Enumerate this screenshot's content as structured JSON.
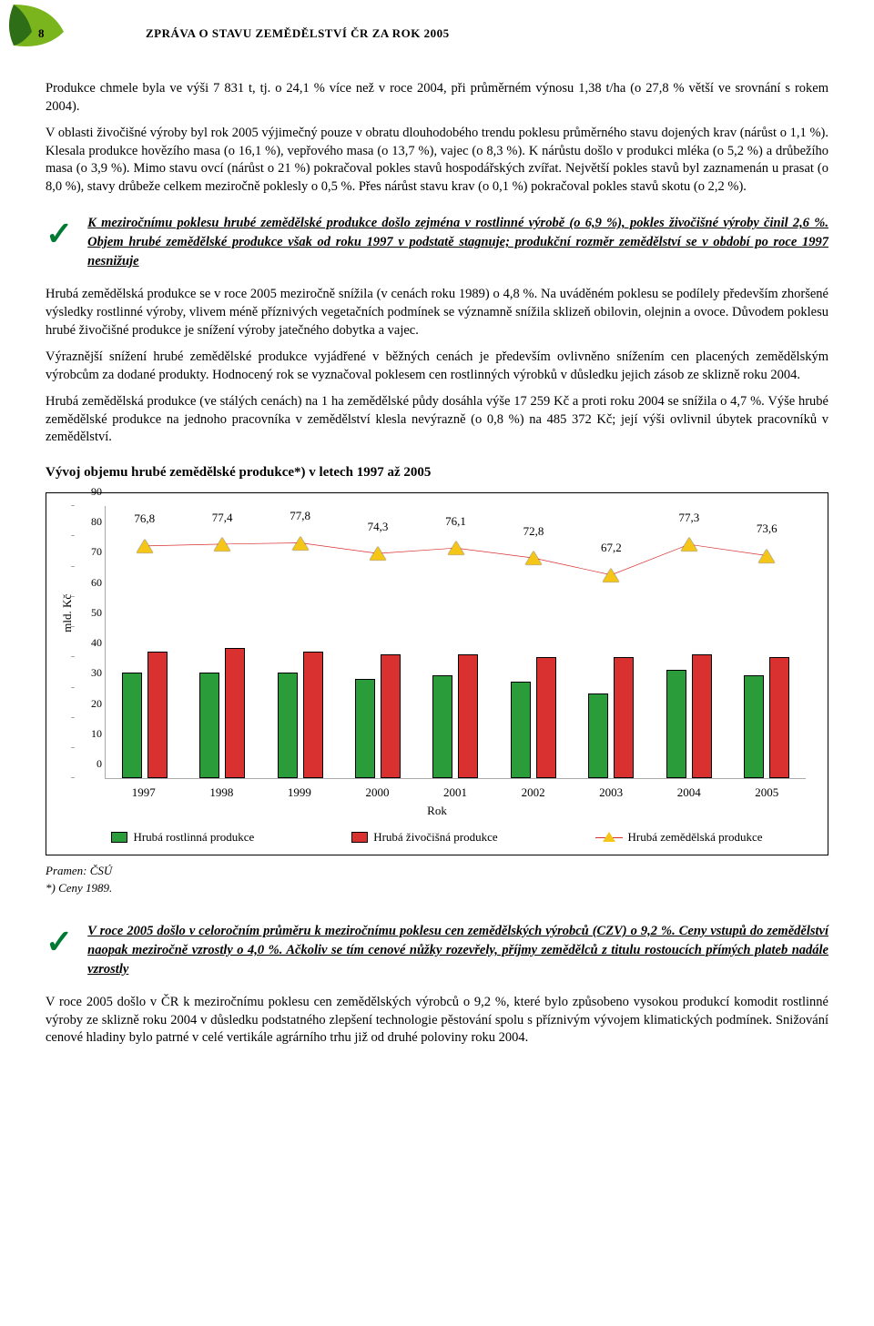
{
  "header": {
    "page_number": "8",
    "title": "ZPRÁVA O STAVU ZEMĚDĚLSTVÍ ČR ZA ROK 2005",
    "leaf_color": "#7ab51d",
    "leaf_dark": "#4a7a14"
  },
  "para1": "Produkce chmele byla ve výši 7 831 t, tj. o 24,1 % více než v roce 2004, při průměrném výnosu 1,38 t/ha (o 27,8 % větší ve srovnání s rokem 2004).",
  "para2": "V oblasti živočišné výroby byl rok 2005 výjimečný pouze v obratu dlouhodobého trendu poklesu průměrného stavu dojených krav (nárůst o 1,1 %). Klesala produkce hovězího masa (o 16,1 %), vepřového masa (o 13,7 %), vajec (o 8,3 %). K nárůstu došlo v produkci mléka (o 5,2 %) a drůbežího masa (o 3,9 %). Mimo stavu ovcí (nárůst o 21 %) pokračoval pokles stavů hospodářských zvířat. Největší pokles stavů byl zaznamenán u prasat (o 8,0 %), stavy drůbeže celkem meziročně poklesly o 0,5 %. Přes nárůst stavu krav (o 0,1 %) pokračoval pokles stavů skotu (o 2,2 %).",
  "callout1": "K meziročnímu poklesu hrubé zemědělské produkce došlo zejména v rostlinné výrobě (o 6,9 %), pokles živočišné výroby činil 2,6 %. Objem hrubé zemědělské produkce však od roku 1997 v podstatě stagnuje; produkční rozměr zemědělství se v období po roce 1997 nesnižuje",
  "para3": "Hrubá zemědělská produkce se v roce 2005 meziročně snížila (v cenách roku 1989) o 4,8 %. Na uváděném poklesu se podílely především zhoršené výsledky rostlinné výroby, vlivem méně příznivých vegetačních podmínek se významně snížila sklizeň obilovin, olejnin a ovoce. Důvodem poklesu hrubé živočišné produkce je snížení výroby jatečného dobytka a vajec.",
  "para4": "Výraznější snížení hrubé zemědělské produkce vyjádřené v běžných cenách je především ovlivněno snížením cen placených zemědělským výrobcům za dodané produkty. Hodnocený rok se vyznačoval poklesem cen rostlinných výrobků v důsledku jejich zásob ze sklizně roku 2004.",
  "para5": "Hrubá zemědělská produkce (ve stálých cenách) na 1 ha zemědělské půdy dosáhla výše 17 259 Kč a proti roku 2004 se snížila o 4,7 %. Výše hrubé zemědělské produkce na jednoho pracovníka v zemědělství klesla nevýrazně (o 0,8 %) na 485 372 Kč; její výši ovlivnil úbytek pracovníků v zemědělství.",
  "chart": {
    "title": "Vývoj objemu hrubé zemědělské produkce*) v letech 1997 až 2005",
    "y_axis_label": "mld. Kč",
    "x_axis_label": "Rok",
    "ymin": 0,
    "ymax": 90,
    "ytick_step": 10,
    "years": [
      "1997",
      "1998",
      "1999",
      "2000",
      "2001",
      "2002",
      "2003",
      "2004",
      "2005"
    ],
    "green_values": [
      35,
      35,
      35,
      33,
      34,
      32,
      28,
      36,
      34
    ],
    "red_values": [
      42,
      43,
      42,
      41,
      41,
      40,
      40,
      41,
      40
    ],
    "line_values": [
      76.8,
      77.4,
      77.8,
      74.3,
      76.1,
      72.8,
      67.2,
      77.3,
      73.6
    ],
    "line_labels": [
      "76,8",
      "77,4",
      "77,8",
      "74,3",
      "76,1",
      "72,8",
      "67,2",
      "77,3",
      "73,6"
    ],
    "bar_green_color": "#2a9d3a",
    "bar_red_color": "#d93030",
    "line_color": "#d93030",
    "triangle_color": "#f5c518",
    "border_color": "#000000",
    "grid_color": "#aaaaaa",
    "legend": {
      "green": "Hrubá rostlinná produkce",
      "red": "Hrubá živočišná produkce",
      "line": "Hrubá zemědělská produkce"
    }
  },
  "source": "Pramen: ČSÚ",
  "footnote": "*) Ceny 1989.",
  "callout2": "V roce 2005 došlo v celoročním průměru k meziročnímu poklesu cen zemědělských výrobců (CZV) o 9,2 %. Ceny vstupů do zemědělství naopak meziročně vzrostly o 4,0 %. Ačkoliv se tím cenové nůžky rozevřely, příjmy zemědělců z titulu rostoucích přímých plateb nadále vzrostly",
  "para6": "V roce 2005 došlo v ČR k meziročnímu poklesu cen zemědělských výrobců o 9,2 %, které bylo způsobeno vysokou produkcí komodit rostlinné výroby ze sklizně roku 2004 v důsledku podstatného zlepšení technologie pěstování spolu s příznivým vývojem klimatických podmínek. Snižování cenové hladiny bylo patrné v celé vertikále agrárního trhu již od druhé poloviny roku 2004."
}
